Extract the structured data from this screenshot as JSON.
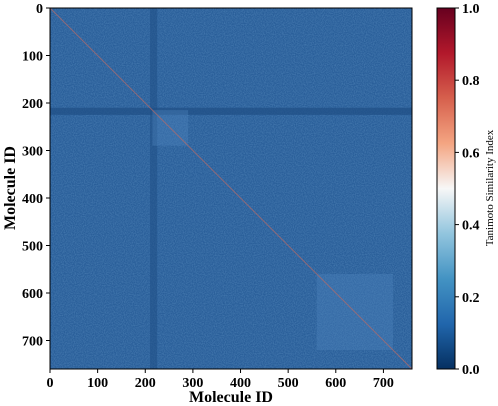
{
  "chart_data": {
    "type": "heatmap",
    "title": "",
    "xlabel": "Molecule ID",
    "ylabel": "Molecule ID",
    "n_molecules": 760,
    "x_ticks": [
      0,
      100,
      200,
      300,
      400,
      500,
      600,
      700
    ],
    "y_ticks": [
      0,
      100,
      200,
      300,
      400,
      500,
      600,
      700
    ],
    "colorbar": {
      "label": "Tanimoto Similarity Index",
      "range": [
        0.0,
        1.0
      ],
      "ticks": [
        "0.0",
        "0.2",
        "0.4",
        "0.6",
        "0.8",
        "1.0"
      ],
      "colormap": "RdBu_r",
      "stops": [
        "#053061",
        "#2166ac",
        "#4393c3",
        "#92c5de",
        "#f7f7f7",
        "#f4a582",
        "#d6604d",
        "#b2182b",
        "#67001f"
      ]
    },
    "typical_similarity": 0.14,
    "diagonal_similarity": 1.0,
    "low_similarity_bands": [
      [
        210,
        225
      ]
    ],
    "higher_similarity_blocks": [
      [
        215,
        290
      ],
      [
        560,
        720
      ]
    ]
  }
}
